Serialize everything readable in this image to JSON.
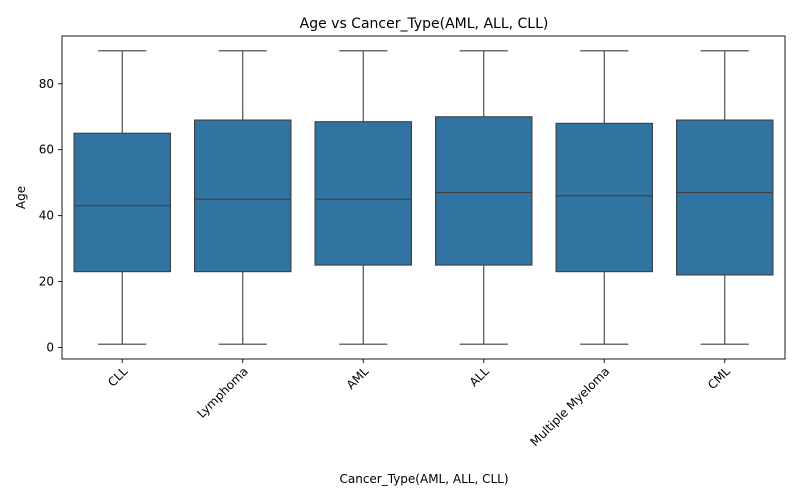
{
  "chart_data": {
    "type": "box",
    "title": "Age vs Cancer_Type(AML, ALL, CLL)",
    "xlabel": "Cancer_Type(AML, ALL, CLL)",
    "ylabel": "Age",
    "ylim": [
      -3.5,
      94.5
    ],
    "yticks": [
      0,
      20,
      40,
      60,
      80
    ],
    "categories": [
      "CLL",
      "Lymphoma",
      "AML",
      "ALL",
      "Multiple Myeloma",
      "CML"
    ],
    "boxes": [
      {
        "min": 1,
        "q1": 23,
        "median": 43,
        "q3": 65,
        "max": 90
      },
      {
        "min": 1,
        "q1": 23,
        "median": 45,
        "q3": 69,
        "max": 90
      },
      {
        "min": 1,
        "q1": 25,
        "median": 45,
        "q3": 68.5,
        "max": 90
      },
      {
        "min": 1,
        "q1": 25,
        "median": 47,
        "q3": 70,
        "max": 90
      },
      {
        "min": 1,
        "q1": 23,
        "median": 46,
        "q3": 68,
        "max": 90
      },
      {
        "min": 1,
        "q1": 22,
        "median": 47,
        "q3": 69,
        "max": 90
      }
    ],
    "box_color": "#3274a1",
    "line_color": "#3f3f3f",
    "grid": false,
    "legend": "none",
    "x_tick_rotation": 45
  }
}
